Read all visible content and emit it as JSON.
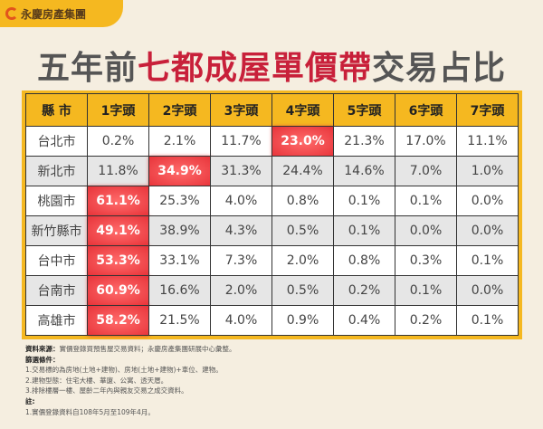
{
  "brand": "永慶房產集團",
  "title": {
    "pre": "五年前",
    "highlight": "七都成屋單價帶",
    "post": "交易占比"
  },
  "table": {
    "headers": [
      "縣 市",
      "1字頭",
      "2字頭",
      "3字頭",
      "4字頭",
      "5字頭",
      "6字頭",
      "7字頭"
    ],
    "rows": [
      {
        "city": "台北市",
        "values": [
          "0.2%",
          "2.1%",
          "11.7%",
          "23.0%",
          "21.3%",
          "17.0%",
          "11.1%"
        ],
        "highlight": 3
      },
      {
        "city": "新北市",
        "values": [
          "11.8%",
          "34.9%",
          "31.3%",
          "24.4%",
          "14.6%",
          "7.0%",
          "1.0%"
        ],
        "highlight": 1
      },
      {
        "city": "桃園市",
        "values": [
          "61.1%",
          "25.3%",
          "4.0%",
          "0.8%",
          "0.1%",
          "0.1%",
          "0.0%"
        ],
        "highlight": 0
      },
      {
        "city": "新竹縣市",
        "values": [
          "49.1%",
          "38.9%",
          "4.3%",
          "0.5%",
          "0.1%",
          "0.0%",
          "0.0%"
        ],
        "highlight": 0
      },
      {
        "city": "台中市",
        "values": [
          "53.3%",
          "33.1%",
          "7.3%",
          "2.0%",
          "0.8%",
          "0.3%",
          "0.1%"
        ],
        "highlight": 0
      },
      {
        "city": "台南市",
        "values": [
          "60.9%",
          "16.6%",
          "2.0%",
          "0.5%",
          "0.2%",
          "0.1%",
          "0.0%"
        ],
        "highlight": 0
      },
      {
        "city": "高雄市",
        "values": [
          "58.2%",
          "21.5%",
          "4.0%",
          "0.9%",
          "0.4%",
          "0.2%",
          "0.1%"
        ],
        "highlight": 0
      }
    ]
  },
  "notes": {
    "source_label": "資料來源：",
    "source": "實價登錄買預售屋交易資料；永慶房產集團研展中心彙整。",
    "filter_label": "篩選條件：",
    "filters": [
      "1.交易標的為房地(土地+建物)、房地(土地+建物)+車位、建物。",
      "2.建物型態：住宅大樓、華廈、公寓、透天厝。",
      "3.排除樓層一樓、屋齡二年內與親友交易之成交資料。"
    ],
    "note_label": "註:",
    "note": "1.實價登錄資料自108年5月至109年4月。"
  }
}
